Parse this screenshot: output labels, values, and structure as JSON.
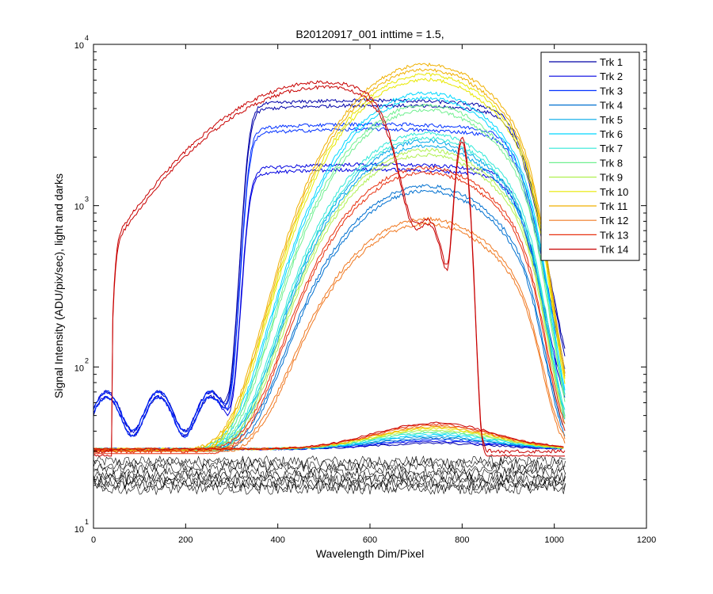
{
  "chart_data": {
    "type": "line",
    "title": "B20120917_001 inttime = 1.5,",
    "xlabel": "Wavelength Dim/Pixel",
    "ylabel": "Signal Intensity (ADU/pix/sec), light and darks",
    "xlim": [
      0,
      1200
    ],
    "ylim": [
      10,
      10000
    ],
    "yscale": "log",
    "xticks": [
      "0",
      "200",
      "400",
      "600",
      "800",
      "1000",
      "1200"
    ],
    "yticks": [
      {
        "base": "10",
        "exp": "1"
      },
      {
        "base": "10",
        "exp": "2"
      },
      {
        "base": "10",
        "exp": "3"
      },
      {
        "base": "10",
        "exp": "4"
      }
    ],
    "legend_position": "top-right",
    "grid": false,
    "series": [
      {
        "name": "Trk 1",
        "color": "#0000a8"
      },
      {
        "name": "Trk 2",
        "color": "#0000e0"
      },
      {
        "name": "Trk 3",
        "color": "#0030ff"
      },
      {
        "name": "Trk 4",
        "color": "#0070d0"
      },
      {
        "name": "Trk 5",
        "color": "#00a8e8"
      },
      {
        "name": "Trk 6",
        "color": "#00d8ff"
      },
      {
        "name": "Trk 7",
        "color": "#30e8d8"
      },
      {
        "name": "Trk 8",
        "color": "#70f090"
      },
      {
        "name": "Trk 9",
        "color": "#b0f050"
      },
      {
        "name": "Trk 10",
        "color": "#e8e800"
      },
      {
        "name": "Trk 11",
        "color": "#f0b000"
      },
      {
        "name": "Trk 12",
        "color": "#f07820"
      },
      {
        "name": "Trk 13",
        "color": "#e83010"
      },
      {
        "name": "Trk 14",
        "color": "#c80000"
      }
    ]
  }
}
